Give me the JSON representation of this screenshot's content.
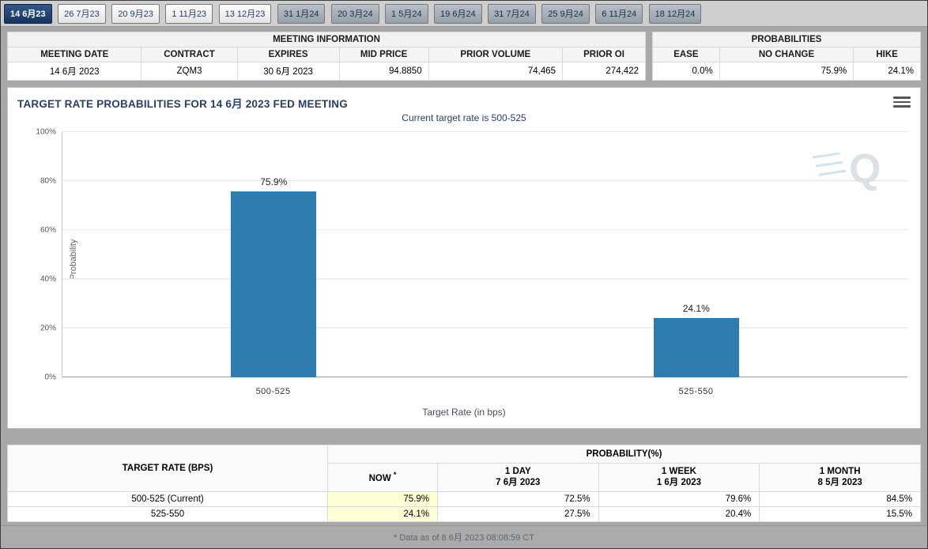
{
  "tabs": {
    "items": [
      {
        "label": "14 6月23",
        "active": true
      },
      {
        "label": "26 7月23"
      },
      {
        "label": "20 9月23"
      },
      {
        "label": "1 11月23"
      },
      {
        "label": "13 12月23"
      },
      {
        "label": "31 1月24"
      },
      {
        "label": "20 3月24"
      },
      {
        "label": "1 5月24"
      },
      {
        "label": "19 6月24"
      },
      {
        "label": "31 7月24"
      },
      {
        "label": "25 9月24"
      },
      {
        "label": "6 11月24"
      },
      {
        "label": "18 12月24"
      }
    ]
  },
  "meeting_info": {
    "title": "MEETING INFORMATION",
    "headers": [
      "MEETING DATE",
      "CONTRACT",
      "EXPIRES",
      "MID PRICE",
      "PRIOR VOLUME",
      "PRIOR OI"
    ],
    "values": [
      "14 6月 2023",
      "ZQM3",
      "30 6月 2023",
      "94.8850",
      "74,465",
      "274,422"
    ]
  },
  "probabilities_panel": {
    "title": "PROBABILITIES",
    "headers": [
      "EASE",
      "NO CHANGE",
      "HIKE"
    ],
    "values": [
      "0.0%",
      "75.9%",
      "24.1%"
    ]
  },
  "chart": {
    "title": "TARGET RATE PROBABILITIES FOR 14 6月 2023 FED MEETING",
    "subtitle": "Current target rate is 500-525",
    "yticks": [
      "100%",
      "80%",
      "60%",
      "40%",
      "20%",
      "0%"
    ],
    "watermark_letter": "Q"
  },
  "chart_data": {
    "type": "bar",
    "categories": [
      "500-525",
      "525-550"
    ],
    "values": [
      75.9,
      24.1
    ],
    "value_labels": [
      "75.9%",
      "24.1%"
    ],
    "title": "TARGET RATE PROBABILITIES FOR 14 6月 2023 FED MEETING",
    "subtitle": "Current target rate is 500-525",
    "xlabel": "Target Rate (in bps)",
    "ylabel": "Probability",
    "ylim": [
      0,
      100
    ],
    "grid": true,
    "bar_color": "#2e7cb0",
    "highlight_color": "#ffffd6",
    "accent_color": "#26406c"
  },
  "history_table": {
    "rate_header": "TARGET RATE (BPS)",
    "group_header": "PROBABILITY(%)",
    "columns": [
      {
        "line1": "NOW",
        "star": "*"
      },
      {
        "line1": "1 DAY",
        "line2": "7 6月 2023"
      },
      {
        "line1": "1 WEEK",
        "line2": "1 6月 2023"
      },
      {
        "line1": "1 MONTH",
        "line2": "8 5月 2023"
      }
    ],
    "rows": [
      {
        "rate": "500-525 (Current)",
        "now": "75.9%",
        "day": "72.5%",
        "week": "79.6%",
        "month": "84.5%"
      },
      {
        "rate": "525-550",
        "now": "24.1%",
        "day": "27.5%",
        "week": "20.4%",
        "month": "15.5%"
      }
    ]
  },
  "footer": {
    "note": "* Data as of 8 6月 2023 08:08:59 CT"
  }
}
